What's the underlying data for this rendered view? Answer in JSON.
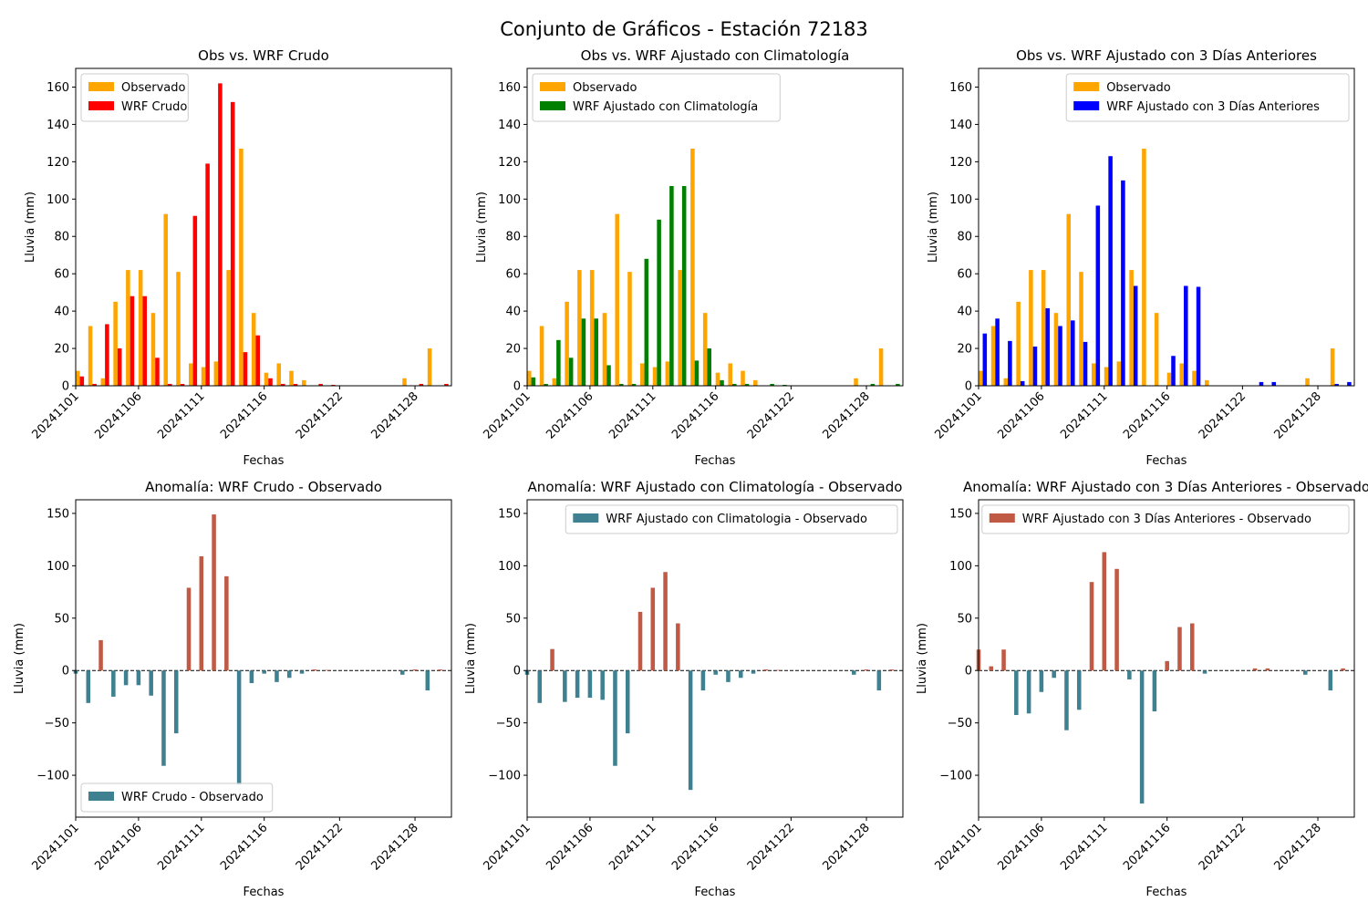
{
  "figure": {
    "suptitle": "Conjunto de Gráficos - Estación 72183"
  },
  "colors": {
    "observado": "#ffa500",
    "wrf_crudo": "#ff0000",
    "wrf_clim": "#008000",
    "wrf_3d": "#0000ff",
    "anom_pos": "#c05a44",
    "anom_neg": "#3f8190"
  },
  "chart_data": [
    {
      "type": "bar",
      "title": "Obs vs. WRF Crudo",
      "xlabel": "Fechas",
      "ylabel": "Lluvia (mm)",
      "ylim": [
        0,
        170
      ],
      "yticks": [
        0,
        20,
        40,
        60,
        80,
        100,
        120,
        140,
        160
      ],
      "xticks": [
        "20241101",
        "20241106",
        "20241111",
        "20241116",
        "20241122",
        "20241128"
      ],
      "legend_position": "upper-left",
      "categories": [
        "20241101",
        "20241102",
        "20241103",
        "20241104",
        "20241105",
        "20241106",
        "20241107",
        "20241108",
        "20241109",
        "20241110",
        "20241111",
        "20241112",
        "20241113",
        "20241114",
        "20241115",
        "20241116",
        "20241117",
        "20241118",
        "20241119",
        "20241120",
        "20241121",
        "20241123",
        "20241124",
        "20241125",
        "20241126",
        "20241127",
        "20241128",
        "20241129",
        "20241130"
      ],
      "series": [
        {
          "name": "Observado",
          "color_key": "observado",
          "values": [
            8,
            32,
            4,
            45,
            62,
            62,
            39,
            92,
            61,
            12,
            10,
            13,
            62,
            127,
            39,
            7,
            12,
            8,
            3,
            0,
            0,
            0,
            0,
            0,
            0,
            4,
            0,
            20,
            0
          ]
        },
        {
          "name": "WRF Crudo",
          "color_key": "wrf_crudo",
          "values": [
            5,
            1,
            33,
            20,
            48,
            48,
            15,
            1,
            1,
            91,
            119,
            162,
            152,
            18,
            27,
            4,
            1,
            1,
            0,
            1,
            0.5,
            0,
            0,
            0,
            0,
            0,
            1,
            0,
            1
          ]
        }
      ]
    },
    {
      "type": "bar",
      "title": "Obs vs. WRF Ajustado con Climatología",
      "xlabel": "Fechas",
      "ylabel": "Lluvia (mm)",
      "ylim": [
        0,
        170
      ],
      "yticks": [
        0,
        20,
        40,
        60,
        80,
        100,
        120,
        140,
        160
      ],
      "xticks": [
        "20241101",
        "20241106",
        "20241111",
        "20241116",
        "20241122",
        "20241128"
      ],
      "legend_position": "upper-left",
      "categories": [
        "20241101",
        "20241102",
        "20241103",
        "20241104",
        "20241105",
        "20241106",
        "20241107",
        "20241108",
        "20241109",
        "20241110",
        "20241111",
        "20241112",
        "20241113",
        "20241114",
        "20241115",
        "20241116",
        "20241117",
        "20241118",
        "20241119",
        "20241120",
        "20241121",
        "20241123",
        "20241124",
        "20241125",
        "20241126",
        "20241127",
        "20241128",
        "20241129",
        "20241130"
      ],
      "series": [
        {
          "name": "Observado",
          "color_key": "observado",
          "values": [
            8,
            32,
            4,
            45,
            62,
            62,
            39,
            92,
            61,
            12,
            10,
            13,
            62,
            127,
            39,
            7,
            12,
            8,
            3,
            0,
            0,
            0,
            0,
            0,
            0,
            4,
            0,
            20,
            0
          ]
        },
        {
          "name": "WRF Ajustado con Climatología",
          "color_key": "wrf_clim",
          "values": [
            4.5,
            1,
            24.5,
            15,
            36,
            36,
            11,
            1,
            1,
            68,
            89,
            107,
            107,
            13.5,
            20,
            3,
            1,
            1,
            0,
            1,
            0.5,
            0,
            0,
            0,
            0,
            0,
            1,
            0,
            1
          ]
        }
      ]
    },
    {
      "type": "bar",
      "title": "Obs vs. WRF Ajustado con 3 Días Anteriores",
      "xlabel": "Fechas",
      "ylabel": "Lluvia (mm)",
      "ylim": [
        0,
        170
      ],
      "yticks": [
        0,
        20,
        40,
        60,
        80,
        100,
        120,
        140,
        160
      ],
      "xticks": [
        "20241101",
        "20241106",
        "20241111",
        "20241116",
        "20241122",
        "20241128"
      ],
      "legend_position": "upper-right",
      "categories": [
        "20241101",
        "20241102",
        "20241103",
        "20241104",
        "20241105",
        "20241106",
        "20241107",
        "20241108",
        "20241109",
        "20241110",
        "20241111",
        "20241112",
        "20241113",
        "20241114",
        "20241115",
        "20241116",
        "20241117",
        "20241118",
        "20241119",
        "20241120",
        "20241121",
        "20241123",
        "20241124",
        "20241125",
        "20241126",
        "20241127",
        "20241128",
        "20241129",
        "20241130"
      ],
      "series": [
        {
          "name": "Observado",
          "color_key": "observado",
          "values": [
            8,
            32,
            4,
            45,
            62,
            62,
            39,
            92,
            61,
            12,
            10,
            13,
            62,
            127,
            39,
            7,
            12,
            8,
            3,
            0,
            0,
            0,
            0,
            0,
            0,
            4,
            0,
            20,
            0
          ]
        },
        {
          "name": "WRF Ajustado con 3 Días Anteriores",
          "color_key": "wrf_3d",
          "values": [
            28,
            36,
            24,
            2.5,
            21,
            41.5,
            32,
            35,
            23.5,
            96.5,
            123,
            110,
            53.5,
            0,
            0,
            16,
            53.5,
            53,
            0,
            0,
            0,
            2,
            2,
            0,
            0,
            0,
            0,
            1,
            2
          ]
        }
      ]
    },
    {
      "type": "bar",
      "title": "Anomalía: WRF Crudo - Observado",
      "xlabel": "Fechas",
      "ylabel": "Lluvia (mm)",
      "ylim": [
        -140,
        163
      ],
      "yticks": [
        -100,
        -50,
        0,
        50,
        100,
        150
      ],
      "xticks": [
        "20241101",
        "20241106",
        "20241111",
        "20241116",
        "20241122",
        "20241128"
      ],
      "legend_position": "lower-left",
      "zero_line": true,
      "categories": [
        "20241101",
        "20241102",
        "20241103",
        "20241104",
        "20241105",
        "20241106",
        "20241107",
        "20241108",
        "20241109",
        "20241110",
        "20241111",
        "20241112",
        "20241113",
        "20241114",
        "20241115",
        "20241116",
        "20241117",
        "20241118",
        "20241119",
        "20241120",
        "20241121",
        "20241123",
        "20241124",
        "20241125",
        "20241126",
        "20241127",
        "20241128",
        "20241129",
        "20241130"
      ],
      "series": [
        {
          "name": "WRF Crudo - Observado",
          "values": [
            -3,
            -31,
            29,
            -25,
            -14,
            -14,
            -24,
            -91,
            -60,
            79,
            109,
            149,
            90,
            -109,
            -12,
            -3,
            -11,
            -7,
            -3,
            1,
            0.5,
            0,
            0,
            0,
            0,
            -4,
            1,
            -19,
            1
          ]
        }
      ]
    },
    {
      "type": "bar",
      "title": "Anomalía: WRF Ajustado con Climatología - Observado",
      "xlabel": "Fechas",
      "ylabel": "Lluvia (mm)",
      "ylim": [
        -140,
        163
      ],
      "yticks": [
        -100,
        -50,
        0,
        50,
        100,
        150
      ],
      "xticks": [
        "20241101",
        "20241106",
        "20241111",
        "20241116",
        "20241122",
        "20241128"
      ],
      "legend_position": "upper-right",
      "zero_line": true,
      "categories": [
        "20241101",
        "20241102",
        "20241103",
        "20241104",
        "20241105",
        "20241106",
        "20241107",
        "20241108",
        "20241109",
        "20241110",
        "20241111",
        "20241112",
        "20241113",
        "20241114",
        "20241115",
        "20241116",
        "20241117",
        "20241118",
        "20241119",
        "20241120",
        "20241121",
        "20241123",
        "20241124",
        "20241125",
        "20241126",
        "20241127",
        "20241128",
        "20241129",
        "20241130"
      ],
      "series": [
        {
          "name": "WRF Ajustado con Climatologia - Observado",
          "values": [
            -4,
            -31,
            20.5,
            -30,
            -26,
            -26,
            -28,
            -91,
            -60,
            56,
            79,
            94,
            45,
            -114,
            -19,
            -4,
            -11,
            -7,
            -3,
            1,
            0.5,
            0,
            0,
            0,
            0,
            -4,
            1,
            -19,
            1
          ]
        }
      ]
    },
    {
      "type": "bar",
      "title": "Anomalía: WRF Ajustado con 3 Días Anteriores - Observado",
      "xlabel": "Fechas",
      "ylabel": "Lluvia (mm)",
      "ylim": [
        -140,
        163
      ],
      "yticks": [
        -100,
        -50,
        0,
        50,
        100,
        150
      ],
      "xticks": [
        "20241101",
        "20241106",
        "20241111",
        "20241116",
        "20241122",
        "20241128"
      ],
      "legend_position": "upper-right",
      "zero_line": true,
      "categories": [
        "20241101",
        "20241102",
        "20241103",
        "20241104",
        "20241105",
        "20241106",
        "20241107",
        "20241108",
        "20241109",
        "20241110",
        "20241111",
        "20241112",
        "20241113",
        "20241114",
        "20241115",
        "20241116",
        "20241117",
        "20241118",
        "20241119",
        "20241120",
        "20241121",
        "20241123",
        "20241124",
        "20241125",
        "20241126",
        "20241127",
        "20241128",
        "20241129",
        "20241130"
      ],
      "series": [
        {
          "name": "WRF Ajustado con 3 Días Anteriores - Observado",
          "values": [
            20,
            4,
            20,
            -42.5,
            -41,
            -20.5,
            -7,
            -57,
            -37.5,
            84.5,
            113,
            97,
            -8.5,
            -127,
            -39,
            9,
            41.5,
            45,
            -3,
            0,
            0,
            2,
            2,
            0,
            0,
            -4,
            0,
            -19,
            2
          ]
        }
      ]
    }
  ]
}
